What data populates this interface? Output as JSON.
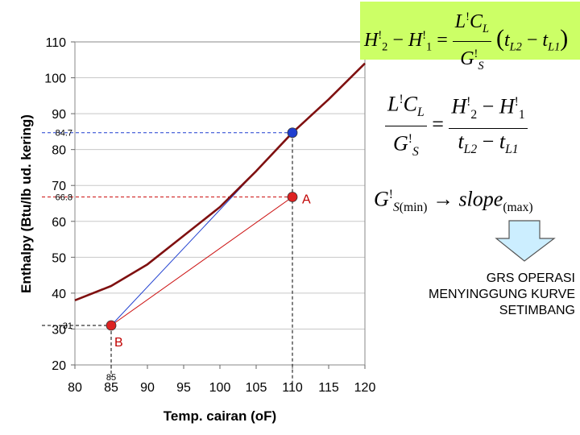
{
  "chart_data": {
    "type": "line",
    "xlabel": "Temp. cairan (oF)",
    "ylabel": "Enthalpy (Btu/lb ud. kering)",
    "xlim": [
      80,
      120
    ],
    "ylim": [
      20,
      110
    ],
    "xticks": [
      "80",
      "85",
      "90",
      "95",
      "100",
      "105",
      "110",
      "115",
      "120"
    ],
    "yticks": [
      "20",
      "30",
      "40",
      "50",
      "60",
      "70",
      "80",
      "90",
      "100",
      "110"
    ],
    "grid": true,
    "series": [
      {
        "color": "#7f1010",
        "x": [
          80,
          85,
          90,
          95,
          100,
          105,
          110,
          115,
          120
        ],
        "y": [
          38,
          42,
          48,
          56,
          64,
          74,
          84.7,
          94,
          104
        ]
      }
    ],
    "points": [
      {
        "label": "",
        "x": 110,
        "y": 84.7,
        "color": "#1f3fd0"
      },
      {
        "label": "A",
        "x": 110,
        "y": 66.8,
        "color": "#dd2222"
      },
      {
        "label": "B",
        "x": 85,
        "y": 31,
        "color": "#dd2222"
      }
    ],
    "operating_lines": [
      {
        "color": "#1f3fd0",
        "from": [
          85,
          31
        ],
        "to": [
          110,
          84.7
        ]
      },
      {
        "color": "#cc1111",
        "from": [
          85,
          31
        ],
        "to": [
          110,
          66.8
        ]
      }
    ],
    "guide_values": [
      {
        "text": "84.7",
        "y": 84.7,
        "color": "#1f3fd0"
      },
      {
        "text": "66.8",
        "y": 66.8,
        "color": "#cc1111"
      },
      {
        "text": "31",
        "y": 31,
        "color": "#000000"
      }
    ],
    "guide_x": {
      "text": "85",
      "x": 85
    }
  },
  "equations": {
    "eq1": {
      "lhs_a": "H",
      "lhs_a_sub": "2",
      "lhs_b": "H",
      "lhs_b_sub": "1",
      "prime": "!",
      "num": "L",
      "num_c": "C",
      "num_c_sub": "L",
      "den": "G",
      "den_sub": "S",
      "t_a": "t",
      "t_a_sub": "L2",
      "t_b": "t",
      "t_b_sub": "L1"
    },
    "eq3": {
      "g": "G",
      "g_sub": "S",
      "min": "(min)",
      "arrow": "→",
      "slope": "slope",
      "max": "(max)"
    }
  },
  "note": {
    "lines": [
      "GRS OPERASI",
      "MENYINGGUNG KURVE",
      "SETIMBANG"
    ]
  }
}
